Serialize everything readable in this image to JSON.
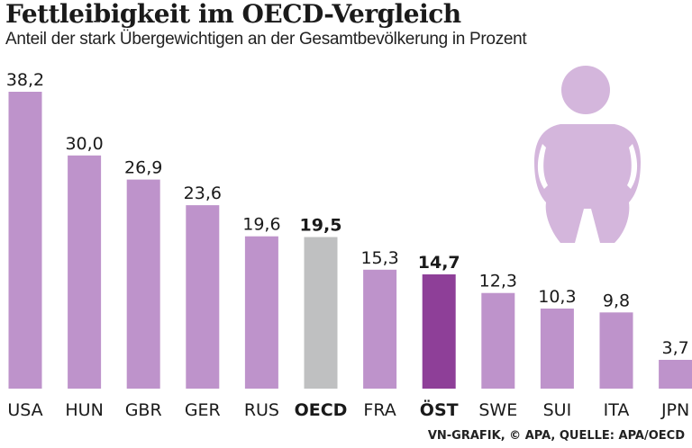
{
  "header": {
    "title": "Fettleibigkeit im OECD-Vergleich",
    "subtitle": "Anteil der stark Übergewichtigen an der Gesamtbevölkerung in Prozent"
  },
  "footer": {
    "source": "VN-GRAFIK, © APA, QUELLE: APA/OECD"
  },
  "colors": {
    "bar_default": "#be93cb",
    "bar_oecd": "#bfc0c1",
    "bar_austria": "#8e3f98",
    "figure": "#d4b6dc"
  },
  "chart_data": {
    "type": "bar",
    "title": "Fettleibigkeit im OECD-Vergleich",
    "subtitle": "Anteil der stark Übergewichtigen an der Gesamtbevölkerung in Prozent",
    "categories": [
      "USA",
      "HUN",
      "GBR",
      "GER",
      "RUS",
      "OECD",
      "FRA",
      "ÖST",
      "SWE",
      "SUI",
      "ITA",
      "JPN"
    ],
    "values": [
      38.2,
      30.0,
      26.9,
      23.6,
      19.6,
      19.5,
      15.3,
      14.7,
      12.3,
      10.3,
      9.8,
      3.7
    ],
    "value_labels": [
      "38,2",
      "30,0",
      "26,9",
      "23,6",
      "19,6",
      "19,5",
      "15,3",
      "14,7",
      "12,3",
      "10,3",
      "9,8",
      "3,7"
    ],
    "highlighted": [
      "OECD",
      "ÖST"
    ],
    "ylim": [
      0,
      38.2
    ],
    "grid": false,
    "legend": "none"
  }
}
